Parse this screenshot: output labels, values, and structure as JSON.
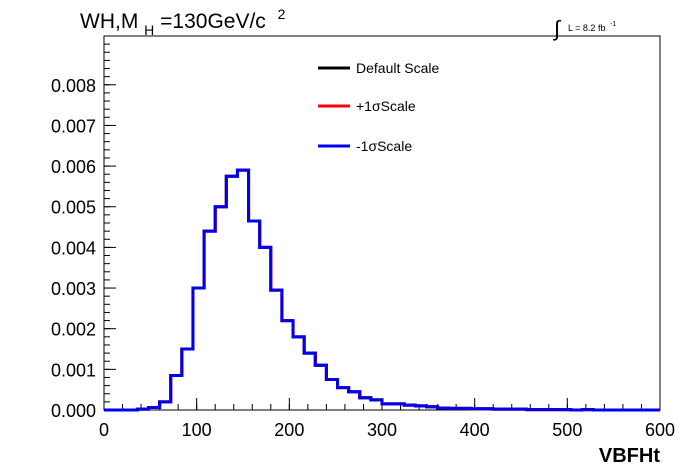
{
  "chart_data": {
    "type": "line",
    "title": {
      "main": "WH,M",
      "subscript": "H",
      "rest": "=130GeV/c",
      "superscript": "2"
    },
    "lumi": {
      "symbol": "∫",
      "text": "L = 8.2 fb",
      "superscript": "-1"
    },
    "xlabel": "VBFHt",
    "ylabel": "",
    "xlim": [
      0,
      600
    ],
    "ylim": [
      0,
      0.0092
    ],
    "xticks": [
      0,
      100,
      200,
      300,
      400,
      500,
      600
    ],
    "xtick_labels": [
      "0",
      "100",
      "200",
      "300",
      "400",
      "500",
      "600"
    ],
    "yticks": [
      0.0,
      0.001,
      0.002,
      0.003,
      0.004,
      0.005,
      0.006,
      0.007,
      0.008
    ],
    "ytick_labels": [
      "0.000",
      "0.001",
      "0.002",
      "0.003",
      "0.004",
      "0.005",
      "0.006",
      "0.007",
      "0.008"
    ],
    "grid": false,
    "legend_position": "top-right",
    "bin_edges": [
      0,
      12,
      24,
      36,
      48,
      60,
      72,
      84,
      96,
      108,
      120,
      132,
      144,
      156,
      168,
      180,
      192,
      204,
      216,
      228,
      240,
      252,
      264,
      276,
      288,
      300,
      312,
      324,
      336,
      348,
      360,
      372,
      384,
      396,
      408,
      420,
      432,
      444,
      456,
      468,
      480,
      492,
      504,
      516,
      528,
      540,
      552,
      564,
      576,
      588,
      600
    ],
    "series": [
      {
        "name": "Default Scale",
        "color": "#000000",
        "values": [
          0,
          0,
          0,
          2e-05,
          6e-05,
          0.0002,
          0.00085,
          0.0015,
          0.003,
          0.0044,
          0.005,
          0.00575,
          0.0059,
          0.00465,
          0.004,
          0.00295,
          0.0022,
          0.0018,
          0.0014,
          0.0011,
          0.00075,
          0.00055,
          0.00045,
          0.0003,
          0.00025,
          0.00015,
          0.00015,
          0.00012,
          0.0001,
          8e-05,
          5e-05,
          4e-05,
          4e-05,
          3e-05,
          3e-05,
          2e-05,
          2e-05,
          2e-05,
          1e-05,
          1e-05,
          1e-05,
          1e-05,
          0,
          1e-05,
          0,
          0,
          0,
          0,
          0,
          0
        ]
      },
      {
        "name": "+1σScale",
        "color": "#ff0000",
        "values": [
          0,
          0,
          0,
          2e-05,
          6e-05,
          0.0002,
          0.00085,
          0.0015,
          0.003,
          0.0044,
          0.005,
          0.00575,
          0.0059,
          0.00465,
          0.004,
          0.00295,
          0.0022,
          0.0018,
          0.0014,
          0.0011,
          0.00075,
          0.00055,
          0.00045,
          0.0003,
          0.00025,
          0.00015,
          0.00015,
          0.00012,
          0.0001,
          8e-05,
          5e-05,
          4e-05,
          4e-05,
          3e-05,
          3e-05,
          2e-05,
          2e-05,
          2e-05,
          1e-05,
          1e-05,
          1e-05,
          1e-05,
          0,
          1e-05,
          0,
          0,
          0,
          0,
          0,
          0
        ]
      },
      {
        "name": "-1σScale",
        "color": "#0000ee",
        "values": [
          0,
          0,
          0,
          2e-05,
          6e-05,
          0.0002,
          0.00085,
          0.0015,
          0.003,
          0.0044,
          0.005,
          0.00575,
          0.0059,
          0.00465,
          0.004,
          0.00295,
          0.0022,
          0.0018,
          0.0014,
          0.0011,
          0.00075,
          0.00055,
          0.00045,
          0.0003,
          0.00025,
          0.00015,
          0.00015,
          0.00012,
          0.0001,
          8e-05,
          5e-05,
          4e-05,
          4e-05,
          3e-05,
          3e-05,
          2e-05,
          2e-05,
          2e-05,
          1e-05,
          1e-05,
          1e-05,
          1e-05,
          0,
          1e-05,
          0,
          0,
          0,
          0,
          0,
          0
        ]
      }
    ]
  }
}
